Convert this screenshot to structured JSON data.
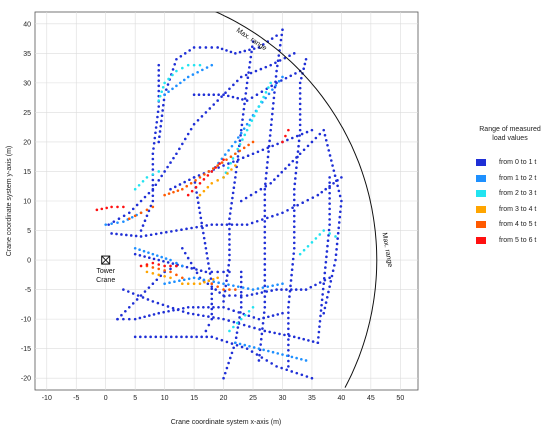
{
  "chart_data": {
    "type": "scatter",
    "xlabel": "Crane coordinate system x-axis (m)",
    "ylabel": "Crane coordinate system y-axis (m)",
    "xlim": [
      -12,
      53
    ],
    "ylim": [
      -22,
      42
    ],
    "xticks": [
      -10,
      -5,
      0,
      5,
      10,
      15,
      20,
      25,
      30,
      35,
      40,
      45,
      50
    ],
    "yticks": [
      -20,
      -15,
      -10,
      -5,
      0,
      5,
      10,
      15,
      20,
      25,
      30,
      35,
      40
    ],
    "grid": true,
    "legend_position": "right",
    "legend_title": "Range of measured load values",
    "series": [
      {
        "name": "from 0 to 1 t",
        "color": "#1f2fd6"
      },
      {
        "name": "from 1 to 2 t",
        "color": "#1e90ff"
      },
      {
        "name": "from 2 to 3 t",
        "color": "#22e3f0"
      },
      {
        "name": "from 3 to 4 t",
        "color": "#ffa500"
      },
      {
        "name": "from 4 to 5 t",
        "color": "#ff5a00"
      },
      {
        "name": "from 5 to 6 t",
        "color": "#ff1010"
      }
    ],
    "trajectories": [
      {
        "series": 0,
        "points": [
          [
            0.5,
            6
          ],
          [
            4,
            8
          ],
          [
            8,
            12
          ],
          [
            12,
            18
          ],
          [
            15,
            23
          ],
          [
            19,
            27
          ],
          [
            23,
            31
          ],
          [
            28,
            33
          ],
          [
            32,
            35
          ]
        ]
      },
      {
        "series": 0,
        "points": [
          [
            1,
            4.5
          ],
          [
            6,
            4
          ],
          [
            12,
            5
          ],
          [
            18,
            6
          ],
          [
            24,
            6
          ],
          [
            30,
            8
          ],
          [
            36,
            11
          ],
          [
            40,
            14
          ]
        ]
      },
      {
        "series": 0,
        "points": [
          [
            3,
            -5
          ],
          [
            8,
            -7
          ],
          [
            14,
            -9
          ],
          [
            20,
            -10
          ],
          [
            27,
            -12
          ],
          [
            32,
            -13
          ],
          [
            36,
            -14
          ]
        ]
      },
      {
        "series": 0,
        "points": [
          [
            2,
            -10
          ],
          [
            5,
            -10
          ],
          [
            9,
            -9
          ],
          [
            14,
            -8
          ],
          [
            20,
            -8
          ],
          [
            26,
            -10
          ],
          [
            30,
            -9
          ]
        ]
      },
      {
        "series": 0,
        "points": [
          [
            5,
            -13
          ],
          [
            12,
            -13
          ],
          [
            18,
            -13
          ],
          [
            24,
            -15
          ],
          [
            29,
            -18
          ],
          [
            35,
            -20
          ]
        ]
      },
      {
        "series": 0,
        "points": [
          [
            20,
            -7
          ],
          [
            21,
            0
          ],
          [
            21,
            7
          ],
          [
            22,
            14
          ],
          [
            23,
            22
          ],
          [
            24,
            30
          ],
          [
            25,
            37
          ]
        ]
      },
      {
        "series": 0,
        "points": [
          [
            26,
            -17
          ],
          [
            27,
            -8
          ],
          [
            27,
            2
          ],
          [
            27,
            12
          ],
          [
            28,
            22
          ],
          [
            29,
            32
          ],
          [
            30,
            39
          ]
        ]
      },
      {
        "series": 0,
        "points": [
          [
            31,
            -18
          ],
          [
            31,
            -8
          ],
          [
            32,
            2
          ],
          [
            32,
            12
          ],
          [
            33,
            22
          ],
          [
            33,
            30
          ],
          [
            34,
            34
          ]
        ]
      },
      {
        "series": 0,
        "points": [
          [
            36,
            -14
          ],
          [
            37,
            -4
          ],
          [
            38,
            6
          ],
          [
            38,
            14
          ]
        ]
      },
      {
        "series": 0,
        "points": [
          [
            9,
            20
          ],
          [
            10,
            28
          ],
          [
            12,
            34
          ],
          [
            15,
            36
          ],
          [
            19,
            36
          ],
          [
            22,
            35
          ],
          [
            26,
            36
          ],
          [
            29,
            38
          ]
        ]
      },
      {
        "series": 0,
        "points": [
          [
            13,
            2
          ],
          [
            16,
            -3
          ],
          [
            20,
            -6
          ],
          [
            24,
            -6
          ],
          [
            29,
            -5
          ],
          [
            34,
            -5
          ],
          [
            38,
            -3
          ]
        ]
      },
      {
        "series": 0,
        "points": [
          [
            15,
            14
          ],
          [
            16,
            8
          ],
          [
            17,
            2
          ],
          [
            18,
            -4
          ],
          [
            18,
            -10
          ],
          [
            17,
            -12
          ]
        ]
      },
      {
        "series": 0,
        "points": [
          [
            9,
            33
          ],
          [
            9,
            26
          ],
          [
            8,
            18
          ],
          [
            8,
            10
          ],
          [
            6,
            5
          ]
        ]
      },
      {
        "series": 0,
        "points": [
          [
            23,
            10
          ],
          [
            28,
            13
          ],
          [
            33,
            18
          ],
          [
            37,
            22
          ],
          [
            40,
            10
          ],
          [
            39,
            0
          ],
          [
            37,
            -9
          ]
        ]
      },
      {
        "series": 0,
        "points": [
          [
            15,
            28
          ],
          [
            20,
            28
          ],
          [
            24,
            27
          ],
          [
            29,
            30
          ],
          [
            33,
            32
          ]
        ]
      },
      {
        "series": 0,
        "points": [
          [
            11,
            12
          ],
          [
            15,
            14
          ],
          [
            20,
            16
          ],
          [
            25,
            18
          ],
          [
            30,
            20
          ],
          [
            35,
            22
          ]
        ]
      },
      {
        "series": 0,
        "points": [
          [
            5,
            1
          ],
          [
            9,
            0
          ],
          [
            13,
            -1
          ],
          [
            17,
            -2
          ],
          [
            21,
            -2
          ]
        ]
      },
      {
        "series": 0,
        "points": [
          [
            20,
            -20
          ],
          [
            22,
            -14
          ],
          [
            23,
            -8
          ],
          [
            23,
            -2
          ]
        ]
      },
      {
        "series": 0,
        "points": [
          [
            2,
            -10
          ],
          [
            4,
            -8
          ],
          [
            6,
            -6
          ],
          [
            8,
            -4
          ],
          [
            10,
            -2
          ],
          [
            12,
            -1
          ]
        ]
      },
      {
        "series": 1,
        "points": [
          [
            0,
            6
          ],
          [
            3,
            6.5
          ],
          [
            6,
            8
          ]
        ]
      },
      {
        "series": 1,
        "points": [
          [
            10,
            -4
          ],
          [
            15,
            -3
          ],
          [
            20,
            -4
          ],
          [
            25,
            -5
          ],
          [
            30,
            -4
          ]
        ]
      },
      {
        "series": 1,
        "points": [
          [
            22,
            -14
          ],
          [
            26,
            -15
          ],
          [
            30,
            -16
          ],
          [
            34,
            -17
          ]
        ]
      },
      {
        "series": 1,
        "points": [
          [
            18,
            15
          ],
          [
            22,
            20
          ],
          [
            26,
            26
          ],
          [
            30,
            31
          ]
        ]
      },
      {
        "series": 1,
        "points": [
          [
            10,
            28
          ],
          [
            14,
            31
          ],
          [
            18,
            33
          ]
        ]
      },
      {
        "series": 1,
        "points": [
          [
            5,
            2
          ],
          [
            8,
            1
          ],
          [
            11,
            0
          ],
          [
            13,
            -1
          ]
        ]
      },
      {
        "series": 2,
        "points": [
          [
            9,
            27
          ],
          [
            10,
            30
          ],
          [
            12,
            32
          ],
          [
            14,
            33
          ],
          [
            16,
            33
          ]
        ]
      },
      {
        "series": 2,
        "points": [
          [
            20,
            14
          ],
          [
            22,
            18
          ],
          [
            24,
            22
          ],
          [
            26,
            26
          ],
          [
            28,
            30
          ]
        ]
      },
      {
        "series": 2,
        "points": [
          [
            33,
            1
          ],
          [
            35,
            3
          ],
          [
            37,
            5
          ],
          [
            39,
            4
          ]
        ]
      },
      {
        "series": 2,
        "points": [
          [
            21,
            -12
          ],
          [
            23,
            -10
          ],
          [
            25,
            -8
          ]
        ]
      },
      {
        "series": 2,
        "points": [
          [
            5,
            12
          ],
          [
            7,
            14
          ],
          [
            9,
            15
          ]
        ]
      },
      {
        "series": 3,
        "points": [
          [
            16,
            11
          ],
          [
            18,
            13
          ],
          [
            20,
            14
          ],
          [
            22,
            16
          ]
        ]
      },
      {
        "series": 3,
        "points": [
          [
            13,
            -4
          ],
          [
            16,
            -4
          ],
          [
            19,
            -3
          ]
        ]
      },
      {
        "series": 3,
        "points": [
          [
            7,
            -2
          ],
          [
            9,
            -2.5
          ],
          [
            11,
            -3
          ]
        ]
      },
      {
        "series": 4,
        "points": [
          [
            10,
            11
          ],
          [
            13,
            12
          ],
          [
            16,
            14
          ],
          [
            19,
            16
          ],
          [
            22,
            18
          ],
          [
            25,
            20
          ]
        ]
      },
      {
        "series": 4,
        "points": [
          [
            7,
            -1
          ],
          [
            9,
            -1.5
          ],
          [
            11,
            -2
          ],
          [
            13,
            -3
          ]
        ]
      },
      {
        "series": 4,
        "points": [
          [
            18,
            -4
          ],
          [
            20,
            -5
          ],
          [
            22,
            -5
          ]
        ]
      },
      {
        "series": 4,
        "points": [
          [
            4,
            7
          ],
          [
            6,
            8
          ],
          [
            8,
            9
          ]
        ]
      },
      {
        "series": 5,
        "points": [
          [
            -1.5,
            8.5
          ],
          [
            1,
            9
          ],
          [
            3,
            9
          ]
        ]
      },
      {
        "series": 5,
        "points": [
          [
            6,
            -1
          ],
          [
            8,
            -0.5
          ],
          [
            10,
            -1
          ],
          [
            12,
            -1
          ]
        ]
      },
      {
        "series": 5,
        "points": [
          [
            14,
            11
          ],
          [
            16,
            13
          ],
          [
            18,
            15
          ],
          [
            20,
            17
          ]
        ]
      },
      {
        "series": 5,
        "points": [
          [
            30,
            20
          ],
          [
            31,
            22
          ]
        ]
      }
    ],
    "boundary": {
      "radius": 46,
      "from_angle_deg": -28,
      "to_angle_deg": 68
    },
    "annotations": [
      {
        "text": "Max. range"
      },
      {
        "text": "Max. range"
      },
      {
        "text": "Tower Crane",
        "x": 0,
        "y": 0
      }
    ]
  }
}
